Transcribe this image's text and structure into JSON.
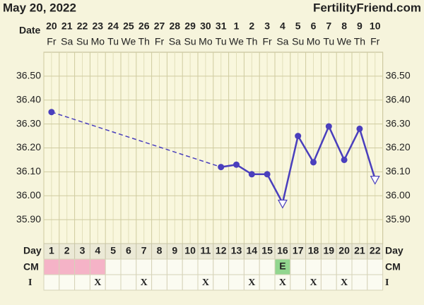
{
  "header": {
    "date": "May 20, 2022",
    "site": "FertilityFriend.com"
  },
  "chart_data": {
    "type": "line",
    "row_labels": {
      "date": "Date",
      "day": "Day",
      "cm": "CM",
      "intercourse": "I"
    },
    "dates": [
      "20",
      "21",
      "22",
      "23",
      "24",
      "25",
      "26",
      "27",
      "28",
      "29",
      "30",
      "31",
      "1",
      "2",
      "3",
      "4",
      "5",
      "6",
      "7",
      "8",
      "9",
      "10"
    ],
    "weekdays": [
      "Fr",
      "Sa",
      "Su",
      "Mo",
      "Tu",
      "We",
      "Th",
      "Fr",
      "Sa",
      "Su",
      "Mo",
      "Tu",
      "We",
      "Th",
      "Fr",
      "Sa",
      "Su",
      "Mo",
      "Tu",
      "We",
      "Th",
      "Fr"
    ],
    "categories": [
      "1",
      "2",
      "3",
      "4",
      "5",
      "6",
      "7",
      "8",
      "9",
      "10",
      "11",
      "12",
      "13",
      "14",
      "15",
      "16",
      "17",
      "18",
      "19",
      "20",
      "21",
      "22"
    ],
    "values": [
      36.35,
      null,
      null,
      null,
      null,
      null,
      null,
      null,
      null,
      null,
      null,
      36.12,
      36.13,
      36.09,
      36.09,
      35.97,
      36.25,
      36.14,
      36.29,
      36.15,
      36.28,
      36.07
    ],
    "markers": [
      "dot",
      null,
      null,
      null,
      null,
      null,
      null,
      null,
      null,
      null,
      null,
      "dot",
      "dot",
      "dot",
      "dot",
      "open-triangle",
      "dot",
      "dot",
      "dot",
      "dot",
      "dot",
      "open-triangle"
    ],
    "color": "#4a3fbd",
    "ylim": [
      35.8,
      36.6
    ],
    "yticks": [
      {
        "value": 35.9,
        "label": "35.90"
      },
      {
        "value": 36.0,
        "label": "36.00"
      },
      {
        "value": 36.1,
        "label": "36.10"
      },
      {
        "value": 36.2,
        "label": "36.20"
      },
      {
        "value": 36.3,
        "label": "36.30"
      },
      {
        "value": 36.4,
        "label": "36.40"
      },
      {
        "value": 36.5,
        "label": "36.50"
      }
    ],
    "grid": true,
    "cm": [
      null,
      null,
      null,
      null,
      null,
      null,
      null,
      null,
      null,
      null,
      null,
      null,
      null,
      null,
      null,
      "E",
      null,
      null,
      null,
      null,
      null,
      null
    ],
    "cm_colors": [
      "#f5b3c7",
      "#f5b3c7",
      "#f5b3c7",
      "#f5b3c7",
      null,
      null,
      null,
      null,
      null,
      null,
      null,
      null,
      null,
      null,
      null,
      "#92d68f",
      null,
      null,
      null,
      null,
      null,
      null
    ],
    "intercourse": [
      null,
      null,
      null,
      "X",
      null,
      null,
      "X",
      null,
      null,
      null,
      "X",
      null,
      null,
      "X",
      null,
      "X",
      null,
      "X",
      null,
      "X",
      null,
      null
    ]
  }
}
